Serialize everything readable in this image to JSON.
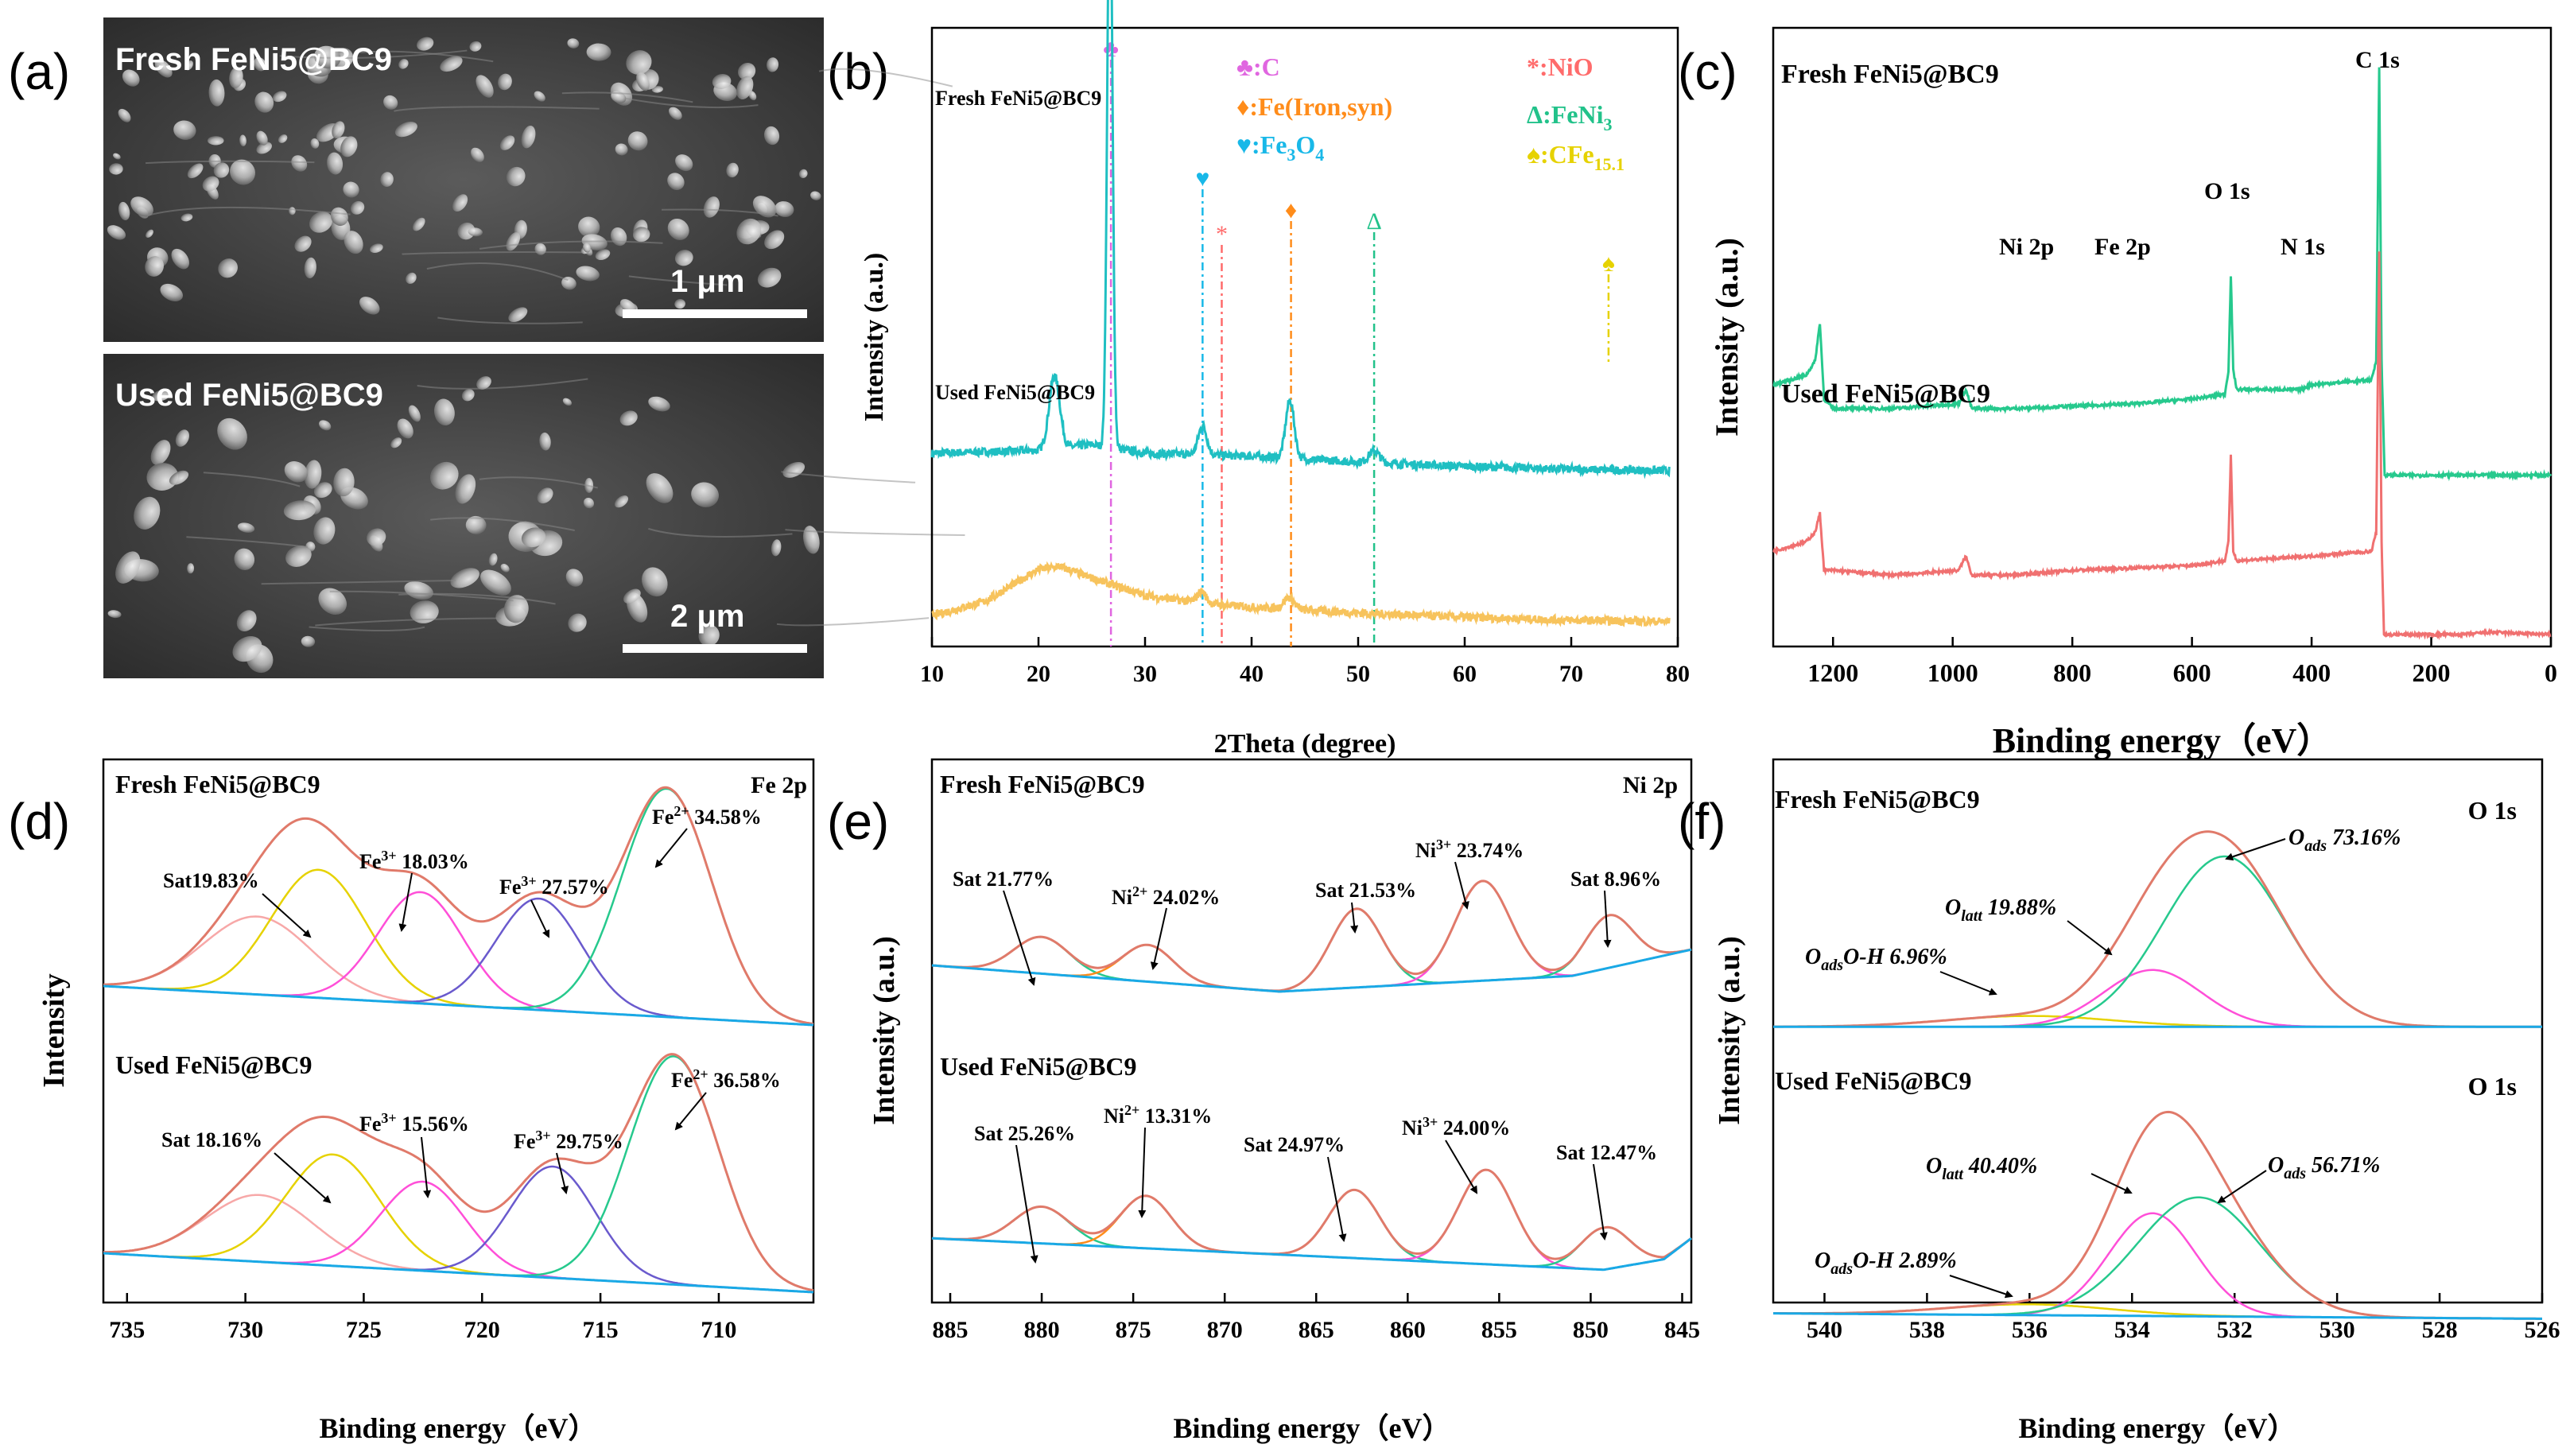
{
  "figure": {
    "panel_letters": [
      "(a)",
      "(b)",
      "(c)",
      "(d)",
      "(e)",
      "(f)"
    ]
  },
  "panel_a": {
    "top": {
      "label": "Fresh FeNi5@BC9",
      "scale": "1 μm"
    },
    "bottom": {
      "label": "Used FeNi5@BC9",
      "scale": "2 μm"
    }
  },
  "chart_data": [
    {
      "id": "b",
      "type": "line",
      "xlabel": "2Theta (degree)",
      "ylabel": "Intensity (a.u.)",
      "xlim": [
        10,
        80
      ],
      "xticks": [
        10,
        20,
        30,
        40,
        50,
        60,
        70,
        80
      ],
      "series": [
        {
          "name": "Fresh FeNi5@BC9",
          "color": "#1fbfc2",
          "baseline": [
            [
              10,
              0.63
            ],
            [
              20,
              0.64
            ],
            [
              25,
              0.66
            ],
            [
              30,
              0.63
            ],
            [
              40,
              0.62
            ],
            [
              50,
              0.6
            ],
            [
              60,
              0.585
            ],
            [
              70,
              0.575
            ],
            [
              79,
              0.57
            ]
          ],
          "peaks": [
            [
              21.5,
              0.25,
              0.5
            ],
            [
              26.7,
              2.0,
              0.25
            ],
            [
              35.4,
              0.1,
              0.4
            ],
            [
              43.6,
              0.2,
              0.4
            ],
            [
              51.5,
              0.04,
              0.5
            ]
          ]
        },
        {
          "name": "Used FeNi5@BC9",
          "color": "#f7c35c",
          "baseline": [
            [
              10,
              0.07
            ],
            [
              15,
              0.12
            ],
            [
              20,
              0.23
            ],
            [
              22,
              0.24
            ],
            [
              25,
              0.2
            ],
            [
              30,
              0.14
            ],
            [
              35,
              0.115
            ],
            [
              40,
              0.1
            ],
            [
              50,
              0.08
            ],
            [
              60,
              0.065
            ],
            [
              70,
              0.055
            ],
            [
              80,
              0.05
            ]
          ],
          "peaks": [
            [
              35.3,
              0.04,
              0.4
            ],
            [
              43.5,
              0.04,
              0.5
            ]
          ]
        }
      ],
      "reference_lines": [
        {
          "x": 26.8,
          "color": "#e066e0",
          "marker": "♣"
        },
        {
          "x": 35.4,
          "color": "#18b8e8",
          "marker": "♥"
        },
        {
          "x": 37.2,
          "color": "#ff6b6b",
          "marker": "*"
        },
        {
          "x": 43.7,
          "color": "#ff8c1a",
          "marker": "♦"
        },
        {
          "x": 51.5,
          "color": "#22c28a",
          "marker": "Δ"
        },
        {
          "x": 73.5,
          "color": "#e6d200",
          "marker": "♠"
        }
      ],
      "legend": [
        {
          "symbol": "♣",
          "text": ":C",
          "sub": "",
          "color": "#e066e0"
        },
        {
          "symbol": "♦",
          "text": ":Fe(Iron,syn)",
          "sub": "",
          "color": "#ff8c1a"
        },
        {
          "symbol": "♥",
          "text": ":Fe",
          "sub": "3",
          "text2": "O",
          "sub2": "4",
          "color": "#18b8e8"
        },
        {
          "symbol": "*",
          "text": ":NiO",
          "sub": "",
          "color": "#ff6b6b"
        },
        {
          "symbol": "Δ",
          "text": ":FeNi",
          "sub": "3",
          "color": "#22c28a"
        },
        {
          "symbol": "♠",
          "text": ":CFe",
          "sub": "15.1",
          "color": "#e6d200"
        }
      ]
    },
    {
      "id": "c",
      "type": "line",
      "xlabel": "Binding energy（eV）",
      "ylabel": "Intensity (a.u.)",
      "xlim": [
        1300,
        0
      ],
      "xticks": [
        1200,
        1000,
        800,
        600,
        400,
        200,
        0
      ],
      "series": [
        {
          "name": "Fresh  FeNi5@BC9",
          "color": "#26c98d",
          "points": [
            [
              1300,
              0.55
            ],
            [
              1245,
              0.57
            ],
            [
              1230,
              0.6
            ],
            [
              1222,
              0.68
            ],
            [
              1215,
              0.52
            ],
            [
              1200,
              0.5
            ],
            [
              1100,
              0.5
            ],
            [
              990,
              0.51
            ],
            [
              978,
              0.54
            ],
            [
              968,
              0.5
            ],
            [
              900,
              0.5
            ],
            [
              800,
              0.505
            ],
            [
              700,
              0.51
            ],
            [
              600,
              0.52
            ],
            [
              545,
              0.53
            ],
            [
              539,
              0.58
            ],
            [
              535,
              0.78
            ],
            [
              531,
              0.58
            ],
            [
              525,
              0.54
            ],
            [
              420,
              0.54
            ],
            [
              400,
              0.55
            ],
            [
              300,
              0.56
            ],
            [
              292,
              0.6
            ],
            [
              287,
              1.22
            ],
            [
              283,
              0.6
            ],
            [
              278,
              0.36
            ],
            [
              270,
              0.36
            ],
            [
              100,
              0.36
            ],
            [
              0,
              0.36
            ]
          ]
        },
        {
          "name": "Used FeNi5@BC9",
          "color": "#f07070",
          "points": [
            [
              1300,
              0.2
            ],
            [
              1245,
              0.22
            ],
            [
              1230,
              0.24
            ],
            [
              1222,
              0.28
            ],
            [
              1215,
              0.16
            ],
            [
              1200,
              0.16
            ],
            [
              1100,
              0.15
            ],
            [
              990,
              0.16
            ],
            [
              978,
              0.19
            ],
            [
              968,
              0.15
            ],
            [
              900,
              0.15
            ],
            [
              800,
              0.16
            ],
            [
              700,
              0.165
            ],
            [
              600,
              0.17
            ],
            [
              545,
              0.18
            ],
            [
              539,
              0.22
            ],
            [
              535,
              0.4
            ],
            [
              531,
              0.2
            ],
            [
              525,
              0.18
            ],
            [
              400,
              0.19
            ],
            [
              300,
              0.2
            ],
            [
              292,
              0.24
            ],
            [
              287,
              0.83
            ],
            [
              283,
              0.22
            ],
            [
              279,
              0.025
            ],
            [
              270,
              0.025
            ],
            [
              150,
              0.025
            ],
            [
              100,
              0.03
            ],
            [
              0,
              0.025
            ]
          ]
        }
      ],
      "annotations": [
        "Ni 2p",
        "Fe 2p",
        "O 1s",
        "N 1s",
        "C 1s"
      ]
    },
    {
      "id": "d",
      "type": "line",
      "xlabel": "Binding energy（eV）",
      "ylabel": "Intensity",
      "xlim": [
        736,
        706
      ],
      "xticks": [
        735,
        730,
        725,
        720,
        715,
        710
      ],
      "title": "Fe 2p",
      "series": [
        {
          "name": "Fresh FeNi5@BC9",
          "baseline": [
            [
              736,
              0.6
            ],
            [
              706,
              0.53
            ]
          ],
          "components": [
            {
              "center": 729.5,
              "height": 0.14,
              "width": 2.3,
              "color": "#f7a8a8"
            },
            {
              "center": 726.9,
              "height": 0.23,
              "width": 2.0,
              "color": "#e6d200"
            },
            {
              "center": 722.6,
              "height": 0.2,
              "width": 1.8,
              "color": "#ff4fd8"
            },
            {
              "center": 717.6,
              "height": 0.2,
              "width": 1.8,
              "color": "#6a5acd"
            },
            {
              "center": 712.2,
              "height": 0.41,
              "width": 1.9,
              "color": "#26c98d"
            }
          ]
        },
        {
          "name": "Used FeNi5@BC9",
          "baseline": [
            [
              736,
              0.12
            ],
            [
              706,
              0.05
            ]
          ],
          "components": [
            {
              "center": 729.4,
              "height": 0.12,
              "width": 2.3,
              "color": "#f7a8a8"
            },
            {
              "center": 726.3,
              "height": 0.2,
              "width": 2.0,
              "color": "#e6d200"
            },
            {
              "center": 722.5,
              "height": 0.16,
              "width": 1.8,
              "color": "#ff4fd8"
            },
            {
              "center": 717.0,
              "height": 0.2,
              "width": 1.8,
              "color": "#6a5acd"
            },
            {
              "center": 711.9,
              "height": 0.41,
              "width": 1.9,
              "color": "#26c98d"
            }
          ]
        }
      ]
    },
    {
      "id": "e",
      "type": "line",
      "xlabel": "Binding energy（eV）",
      "ylabel": "Intensity (a.u.)",
      "xlim": [
        886,
        844.5
      ],
      "xticks": [
        885,
        880,
        875,
        870,
        865,
        860,
        855,
        850,
        845
      ],
      "title": "Ni 2p",
      "series": [
        {
          "name": "Fresh FeNi5@BC9",
          "baseline": [
            [
              886,
              0.6
            ],
            [
              867,
              0.55
            ],
            [
              851,
              0.58
            ],
            [
              844.5,
              0.63
            ]
          ],
          "components": [
            {
              "center": 880.0,
              "height": 0.07,
              "width": 1.5,
              "color": "#26c98d"
            },
            {
              "center": 874.2,
              "height": 0.07,
              "width": 1.4,
              "color": "#ff8c1a"
            },
            {
              "center": 862.8,
              "height": 0.15,
              "width": 1.4,
              "color": "#26c98d"
            },
            {
              "center": 855.9,
              "height": 0.19,
              "width": 1.5,
              "color": "#ff4fd8"
            },
            {
              "center": 849.0,
              "height": 0.1,
              "width": 1.3,
              "color": "#26c98d"
            }
          ]
        },
        {
          "name": "Used FeNi5@BC9",
          "baseline": [
            [
              886,
              0.08
            ],
            [
              849.3,
              0.02
            ],
            [
              846,
              0.04
            ],
            [
              844.5,
              0.08
            ]
          ],
          "components": [
            {
              "center": 880.0,
              "height": 0.07,
              "width": 1.5,
              "color": "#26c98d"
            },
            {
              "center": 874.3,
              "height": 0.1,
              "width": 1.4,
              "color": "#ff8c1a"
            },
            {
              "center": 862.9,
              "height": 0.13,
              "width": 1.4,
              "color": "#26c98d"
            },
            {
              "center": 855.7,
              "height": 0.18,
              "width": 1.5,
              "color": "#ff4fd8"
            },
            {
              "center": 849.2,
              "height": 0.08,
              "width": 1.3,
              "color": "#26c98d"
            }
          ]
        }
      ]
    },
    {
      "id": "f",
      "type": "line",
      "xlabel": "Binding energy（eV）",
      "ylabel": "Intensity (a.u.)",
      "xlim": [
        541,
        526
      ],
      "xticks": [
        540,
        538,
        536,
        534,
        532,
        530,
        528,
        526
      ],
      "title": "O 1s",
      "series": [
        {
          "name": "Fresh   FeNi5@BC9",
          "baseline": [
            [
              541,
              0.56
            ],
            [
              526,
              0.56
            ]
          ],
          "components": [
            {
              "center": 536.0,
              "height": 0.02,
              "width": 1.6,
              "color": "#e6d200"
            },
            {
              "center": 533.6,
              "height": 0.105,
              "width": 0.95,
              "color": "#ff4fd8"
            },
            {
              "center": 532.2,
              "height": 0.315,
              "width": 1.2,
              "color": "#26c98d"
            }
          ]
        },
        {
          "name": "Used   FeNi5@BC9",
          "baseline": [
            [
              541,
              0.03
            ],
            [
              526,
              0.02
            ]
          ],
          "components": [
            {
              "center": 536.0,
              "height": 0.02,
              "width": 1.6,
              "color": "#e6d200"
            },
            {
              "center": 533.6,
              "height": 0.19,
              "width": 0.85,
              "color": "#ff4fd8"
            },
            {
              "center": 532.7,
              "height": 0.22,
              "width": 1.2,
              "color": "#26c98d"
            }
          ]
        }
      ]
    }
  ],
  "annotations": {
    "b": {
      "fresh": "Fresh FeNi5@BC9",
      "used": "Used FeNi5@BC9",
      "xlabel": "2Theta (degree)",
      "ylabel": "Intensity (a.u.)"
    },
    "c": {
      "fresh": "Fresh  FeNi5@BC9",
      "used": "Used FeNi5@BC9",
      "ni": "Ni 2p",
      "fe": "Fe 2p",
      "o": "O 1s",
      "n": "N 1s",
      "c": "C 1s",
      "xlabel": "Binding energy（eV）",
      "ylabel": "Intensity (a.u.)"
    },
    "d": {
      "fresh": "Fresh FeNi5@BC9",
      "used": "Used FeNi5@BC9",
      "title": "Fe 2p",
      "xlabel": "Binding energy（eV）",
      "ylabel": "Intensity",
      "fresh_sat": "Sat19.83%",
      "fresh_fe3a": " 18.03%",
      "fresh_fe3b": " 27.57%",
      "fresh_fe2": " 34.58%",
      "used_sat": "Sat 18.16%",
      "used_fe3a": " 15.56%",
      "used_fe3b": " 29.75%",
      "used_fe2": " 36.58%",
      "fe": "Fe",
      "sup3": "3+",
      "sup2": "2+"
    },
    "e": {
      "fresh": "Fresh FeNi5@BC9",
      "used": "Used FeNi5@BC9",
      "title": "Ni 2p",
      "xlabel": "Binding energy（eV）",
      "ylabel": "Intensity (a.u.)",
      "fresh_sat1": "Sat 21.77%",
      "fresh_ni2": " 24.02%",
      "fresh_sat2": "Sat 21.53%",
      "fresh_ni3": " 23.74%",
      "fresh_sat3": "Sat 8.96%",
      "used_sat1": "Sat 25.26%",
      "used_ni2": " 13.31%",
      "used_sat2": "Sat  24.97%",
      "used_ni3": " 24.00%",
      "used_sat3": "Sat 12.47%",
      "ni": "Ni",
      "sup2": "2+",
      "sup3": "3+"
    },
    "f": {
      "fresh": "Fresh   FeNi5@BC9",
      "used": "Used   FeNi5@BC9",
      "title": "O 1s",
      "xlabel": "Binding energy（eV）",
      "ylabel": "Intensity (a.u.)",
      "o": "O",
      "ads": "ads",
      "latt": "latt",
      "oh": "O-H",
      "fresh_ads": " 73.16%",
      "fresh_latt": "  19.88%",
      "fresh_oh": " 6.96%",
      "used_ads": " 56.71%",
      "used_latt": " 40.40%",
      "used_oh": " 2.89%"
    }
  }
}
